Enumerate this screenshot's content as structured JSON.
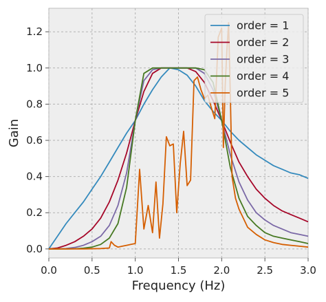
{
  "chart_data": {
    "type": "line",
    "title": "",
    "xlabel": "Frequency (Hz)",
    "ylabel": "Gain",
    "xlim": [
      0.0,
      3.0
    ],
    "ylim": [
      -0.05,
      1.33
    ],
    "xticks": [
      0.0,
      0.5,
      1.0,
      1.5,
      2.0,
      2.5,
      3.0
    ],
    "xtick_labels": [
      "0.0",
      "0.5",
      "1.0",
      "1.5",
      "2.0",
      "2.5",
      "3.0"
    ],
    "yticks": [
      0.0,
      0.2,
      0.4,
      0.6,
      0.8,
      1.0,
      1.2
    ],
    "ytick_labels": [
      "0.0",
      "0.2",
      "0.4",
      "0.6",
      "0.8",
      "1.0",
      "1.2"
    ],
    "grid": true,
    "legend_position": "top-right",
    "series": [
      {
        "name": "order = 1",
        "color": "#348ABD",
        "x": [
          0.0,
          0.1,
          0.2,
          0.3,
          0.4,
          0.5,
          0.6,
          0.7,
          0.8,
          0.9,
          1.0,
          1.1,
          1.2,
          1.3,
          1.4,
          1.5,
          1.6,
          1.7,
          1.8,
          1.9,
          2.0,
          2.1,
          2.2,
          2.3,
          2.4,
          2.5,
          2.6,
          2.7,
          2.8,
          2.9,
          3.0
        ],
        "y": [
          0.0,
          0.07,
          0.14,
          0.2,
          0.26,
          0.33,
          0.4,
          0.48,
          0.56,
          0.64,
          0.71,
          0.8,
          0.88,
          0.95,
          1.0,
          0.99,
          0.96,
          0.9,
          0.82,
          0.76,
          0.71,
          0.65,
          0.6,
          0.56,
          0.52,
          0.49,
          0.46,
          0.44,
          0.42,
          0.41,
          0.39
        ]
      },
      {
        "name": "order = 2",
        "color": "#A60628",
        "x": [
          0.0,
          0.1,
          0.2,
          0.3,
          0.4,
          0.5,
          0.6,
          0.7,
          0.8,
          0.9,
          1.0,
          1.1,
          1.2,
          1.3,
          1.4,
          1.5,
          1.6,
          1.7,
          1.8,
          1.9,
          2.0,
          2.1,
          2.2,
          2.3,
          2.4,
          2.5,
          2.6,
          2.7,
          2.8,
          2.9,
          3.0
        ],
        "y": [
          0.0,
          0.005,
          0.02,
          0.04,
          0.07,
          0.11,
          0.17,
          0.26,
          0.38,
          0.53,
          0.71,
          0.87,
          0.97,
          1.0,
          1.0,
          1.0,
          1.0,
          0.98,
          0.92,
          0.82,
          0.71,
          0.59,
          0.48,
          0.4,
          0.33,
          0.28,
          0.24,
          0.21,
          0.19,
          0.17,
          0.15
        ]
      },
      {
        "name": "order = 3",
        "color": "#7A68A6",
        "x": [
          0.0,
          0.1,
          0.2,
          0.3,
          0.4,
          0.5,
          0.6,
          0.7,
          0.8,
          0.9,
          1.0,
          1.1,
          1.2,
          1.3,
          1.4,
          1.5,
          1.6,
          1.7,
          1.8,
          1.9,
          2.0,
          2.1,
          2.2,
          2.3,
          2.4,
          2.5,
          2.6,
          2.7,
          2.8,
          2.9,
          3.0
        ],
        "y": [
          0.0,
          0.0,
          0.002,
          0.008,
          0.02,
          0.04,
          0.07,
          0.13,
          0.24,
          0.42,
          0.71,
          0.93,
          0.99,
          1.0,
          1.0,
          1.0,
          1.0,
          1.0,
          0.97,
          0.88,
          0.71,
          0.52,
          0.37,
          0.27,
          0.2,
          0.16,
          0.13,
          0.11,
          0.09,
          0.08,
          0.07
        ]
      },
      {
        "name": "order = 4",
        "color": "#467821",
        "x": [
          0.0,
          0.1,
          0.2,
          0.3,
          0.4,
          0.5,
          0.6,
          0.7,
          0.8,
          0.9,
          1.0,
          1.1,
          1.2,
          1.3,
          1.4,
          1.5,
          1.6,
          1.7,
          1.8,
          1.9,
          2.0,
          2.1,
          2.2,
          2.3,
          2.4,
          2.5,
          2.6,
          2.7,
          2.8,
          2.9,
          3.0
        ],
        "y": [
          0.0,
          0.0,
          0.0,
          0.001,
          0.004,
          0.01,
          0.025,
          0.06,
          0.14,
          0.34,
          0.71,
          0.97,
          1.0,
          1.0,
          1.0,
          1.0,
          1.0,
          1.0,
          0.99,
          0.92,
          0.71,
          0.45,
          0.28,
          0.18,
          0.13,
          0.09,
          0.07,
          0.06,
          0.05,
          0.04,
          0.03
        ]
      },
      {
        "name": "order = 5",
        "color": "#D55E00",
        "x": [
          0.0,
          0.2,
          0.4,
          0.6,
          0.7,
          0.72,
          0.76,
          0.8,
          0.85,
          0.9,
          0.95,
          1.0,
          1.05,
          1.1,
          1.15,
          1.2,
          1.24,
          1.28,
          1.32,
          1.36,
          1.4,
          1.44,
          1.48,
          1.52,
          1.56,
          1.6,
          1.64,
          1.68,
          1.72,
          1.76,
          1.8,
          1.84,
          1.88,
          1.92,
          1.96,
          2.0,
          2.02,
          2.04,
          2.06,
          2.08,
          2.1,
          2.12,
          2.16,
          2.2,
          2.3,
          2.4,
          2.5,
          2.6,
          2.7,
          2.8,
          2.9,
          3.0
        ],
        "y": [
          0.0,
          0.0,
          0.0,
          0.002,
          0.005,
          0.04,
          0.02,
          0.01,
          0.015,
          0.02,
          0.025,
          0.03,
          0.44,
          0.11,
          0.24,
          0.09,
          0.37,
          0.06,
          0.25,
          0.62,
          0.57,
          0.58,
          0.2,
          0.47,
          0.65,
          0.35,
          0.38,
          0.93,
          0.95,
          0.88,
          0.83,
          0.85,
          0.78,
          0.72,
          1.17,
          1.22,
          0.56,
          0.9,
          1.1,
          1.25,
          0.85,
          0.4,
          0.28,
          0.22,
          0.12,
          0.08,
          0.05,
          0.035,
          0.025,
          0.02,
          0.015,
          0.01
        ]
      }
    ]
  }
}
